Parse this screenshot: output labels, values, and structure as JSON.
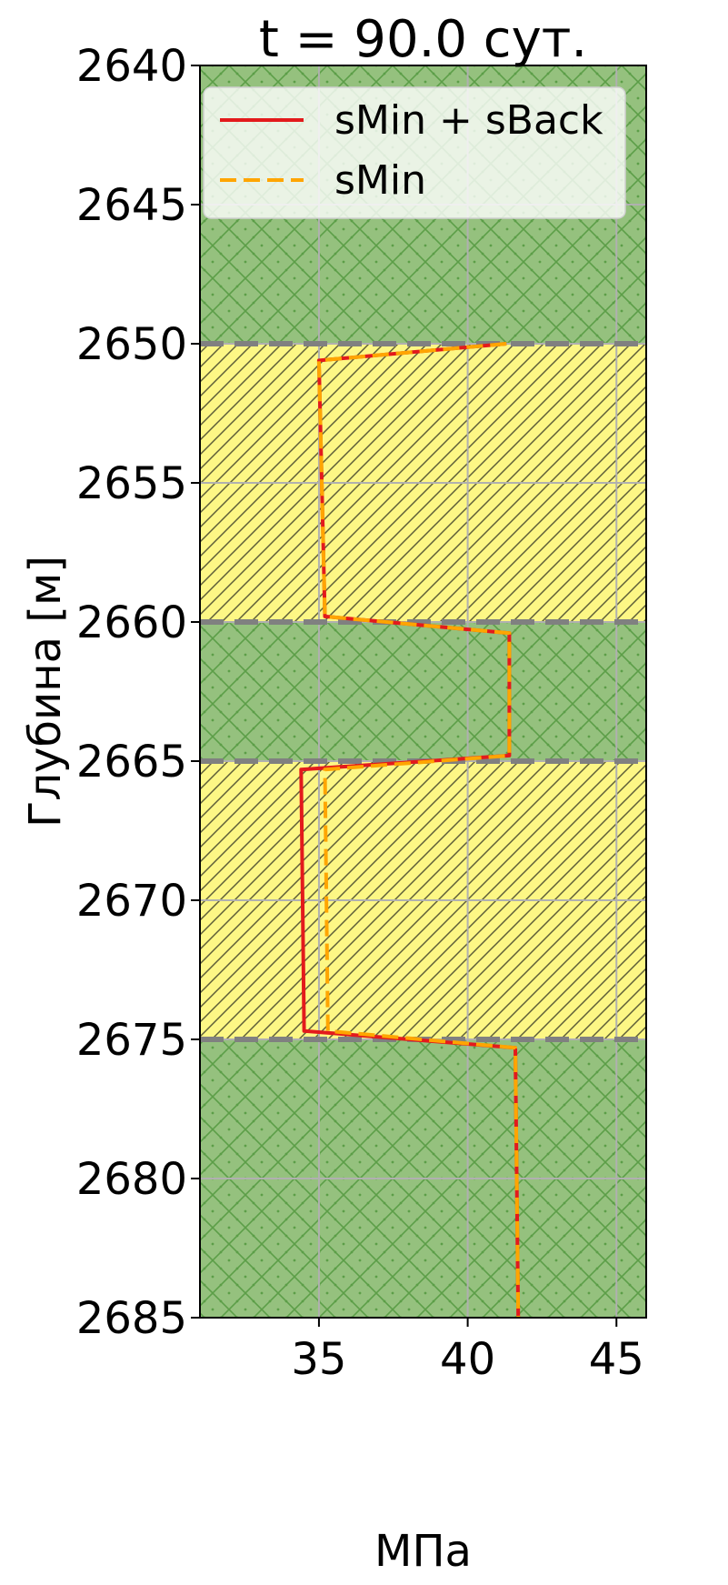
{
  "chart_data": {
    "type": "line",
    "title": "t = 90.0 сут.",
    "xlabel": "МПа",
    "ylabel": "Глубина [м]",
    "xlim": [
      31,
      46
    ],
    "ylim": [
      2685,
      2640
    ],
    "y_inverted": true,
    "grid": true,
    "xticks": [
      35,
      40,
      45
    ],
    "yticks": [
      2640,
      2645,
      2650,
      2655,
      2660,
      2665,
      2670,
      2675,
      2680,
      2685
    ],
    "xtick_labels": [
      "35",
      "40",
      "45"
    ],
    "ytick_labels": [
      "2640",
      "2645",
      "2650",
      "2655",
      "2660",
      "2665",
      "2670",
      "2675",
      "2680",
      "2685"
    ],
    "legend": {
      "position": "top-right",
      "entries": [
        "sMin + sBack",
        "sMin"
      ]
    },
    "layers": [
      {
        "from": 2640,
        "to": 2650,
        "kind": "green"
      },
      {
        "from": 2650,
        "to": 2660,
        "kind": "yellow"
      },
      {
        "from": 2660,
        "to": 2665,
        "kind": "green"
      },
      {
        "from": 2665,
        "to": 2675,
        "kind": "yellow"
      },
      {
        "from": 2675,
        "to": 2685,
        "kind": "green"
      }
    ],
    "boundaries": [
      2650,
      2660,
      2665,
      2675
    ],
    "series": [
      {
        "name": "sMin + sBack",
        "color": "#e31a1c",
        "style": "solid",
        "x": [
          41.3,
          35.0,
          35.2,
          41.4,
          41.4,
          34.4,
          34.5,
          41.6,
          41.7
        ],
        "y": [
          2650.0,
          2650.6,
          2659.8,
          2660.4,
          2664.8,
          2665.3,
          2674.7,
          2675.3,
          2685.0
        ]
      },
      {
        "name": "sMin",
        "color": "#ffa500",
        "style": "dashed",
        "x": [
          41.3,
          35.0,
          35.2,
          41.4,
          41.4,
          35.2,
          35.3,
          41.6,
          41.7
        ],
        "y": [
          2650.0,
          2650.6,
          2659.8,
          2660.4,
          2664.8,
          2665.3,
          2674.7,
          2675.3,
          2685.0
        ]
      }
    ]
  },
  "colors": {
    "green_fill": "#95c17e",
    "green_hatch": "#5c9e48",
    "yellow_fill": "#fdf785",
    "yellow_hatch": "#5e5e38",
    "boundary": "#808080",
    "grid": "#b0b0b0"
  }
}
